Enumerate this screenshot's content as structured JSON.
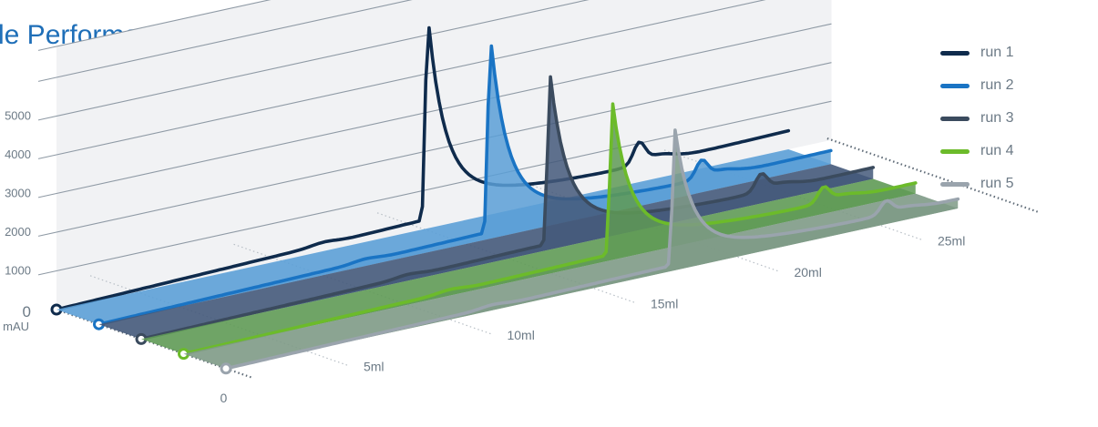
{
  "chart_data": {
    "type": "line",
    "title": "le Performance",
    "ylabel": "mAU",
    "y_ticks": [
      "0",
      "1000",
      "2000",
      "3000",
      "4000",
      "5000"
    ],
    "x_labels": [
      "0",
      "5ml",
      "10ml",
      "15ml",
      "20ml",
      "25ml"
    ],
    "xlim": [
      0,
      27
    ],
    "ylim": [
      0,
      5000
    ],
    "grid": true,
    "legend_position": "top-right",
    "series": [
      {
        "name": "run 1",
        "color": "#0f2b4c",
        "fill": null,
        "peak_x": 12.9,
        "peak_y": 5600,
        "secondary_peak_x": 20.3,
        "secondary_peak_y": 500,
        "baseline_end": 500
      },
      {
        "name": "run 2",
        "color": "#1a74c4",
        "fill": "#5b9fd6",
        "peak_x": 13.6,
        "peak_y": 5400,
        "secondary_peak_x": 21.0,
        "secondary_peak_y": 420,
        "baseline_end": 360
      },
      {
        "name": "run 3",
        "color": "#3b4b5e",
        "fill": "#44597a",
        "peak_x": 14.2,
        "peak_y": 4700,
        "secondary_peak_x": 21.6,
        "secondary_peak_y": 400,
        "baseline_end": 300
      },
      {
        "name": "run 4",
        "color": "#6cbb2a",
        "fill": "#5f9a55",
        "peak_x": 14.9,
        "peak_y": 4200,
        "secondary_peak_x": 22.3,
        "secondary_peak_y": 350,
        "baseline_end": 280
      },
      {
        "name": "run 5",
        "color": "#9aa4ad",
        "fill": "#7e9a86",
        "peak_x": 15.6,
        "peak_y": 3750,
        "secondary_peak_x": 23.0,
        "secondary_peak_y": 300,
        "baseline_end": 240
      }
    ]
  }
}
